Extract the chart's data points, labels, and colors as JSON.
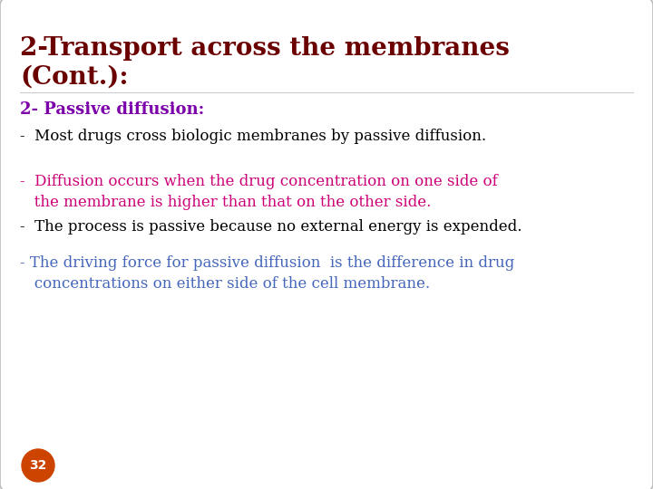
{
  "title_line1": "2-Transport across the membranes",
  "title_line2": "(Cont.):",
  "title_color": "#6B0000",
  "title_fontsize": 20,
  "subtitle": "2- Passive diffusion:",
  "subtitle_color": "#7B00AA",
  "subtitle_fontsize": 13,
  "lines": [
    {
      "text": "-  Most drugs cross biologic membranes by passive diffusion.",
      "color": "#000000",
      "fontsize": 12
    },
    {
      "text": "-  Diffusion occurs when the drug concentration on one side of\n   the membrane is higher than that on the other side.",
      "color": "#CC0077",
      "fontsize": 12
    },
    {
      "text": "-  The process is passive because no external energy is expended.",
      "color": "#000000",
      "fontsize": 12
    },
    {
      "text": "- The driving force for passive diffusion  is the difference in drug\n   concentrations on either side of the cell membrane.",
      "color": "#4466BB",
      "fontsize": 12
    }
  ],
  "background_color": "#FFFFFF",
  "border_color": "#BBBBBB",
  "page_number": "32",
  "page_number_bg": "#CC4400",
  "page_number_color": "#FFFFFF"
}
